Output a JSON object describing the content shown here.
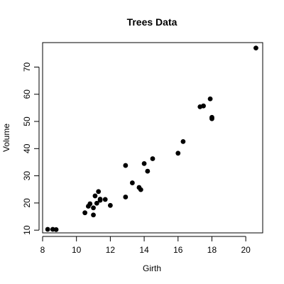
{
  "chart_data": {
    "type": "scatter",
    "title": "Trees Data",
    "xlabel": "Girth",
    "ylabel": "Volume",
    "xlim": [
      8,
      21
    ],
    "ylim": [
      9,
      79
    ],
    "x_ticks": [
      8,
      10,
      12,
      14,
      16,
      18,
      20
    ],
    "y_ticks": [
      10,
      20,
      30,
      40,
      50,
      60,
      70
    ],
    "grid": false,
    "legend": "none",
    "point_color": "#000000",
    "points": [
      {
        "x": 8.3,
        "y": 10.3
      },
      {
        "x": 8.6,
        "y": 10.3
      },
      {
        "x": 8.8,
        "y": 10.2
      },
      {
        "x": 10.5,
        "y": 16.4
      },
      {
        "x": 10.7,
        "y": 18.8
      },
      {
        "x": 10.8,
        "y": 19.7
      },
      {
        "x": 11.0,
        "y": 15.6
      },
      {
        "x": 11.0,
        "y": 18.2
      },
      {
        "x": 11.1,
        "y": 22.6
      },
      {
        "x": 11.2,
        "y": 19.9
      },
      {
        "x": 11.3,
        "y": 24.2
      },
      {
        "x": 11.4,
        "y": 21.0
      },
      {
        "x": 11.4,
        "y": 21.4
      },
      {
        "x": 11.7,
        "y": 21.3
      },
      {
        "x": 12.0,
        "y": 19.1
      },
      {
        "x": 12.9,
        "y": 22.2
      },
      {
        "x": 12.9,
        "y": 33.8
      },
      {
        "x": 13.3,
        "y": 27.4
      },
      {
        "x": 13.7,
        "y": 25.7
      },
      {
        "x": 13.8,
        "y": 24.9
      },
      {
        "x": 14.0,
        "y": 34.5
      },
      {
        "x": 14.2,
        "y": 31.7
      },
      {
        "x": 14.5,
        "y": 36.3
      },
      {
        "x": 16.0,
        "y": 38.3
      },
      {
        "x": 16.3,
        "y": 42.6
      },
      {
        "x": 17.3,
        "y": 55.4
      },
      {
        "x": 17.5,
        "y": 55.7
      },
      {
        "x": 17.9,
        "y": 58.3
      },
      {
        "x": 18.0,
        "y": 51.5
      },
      {
        "x": 18.0,
        "y": 51.0
      },
      {
        "x": 20.6,
        "y": 77.0
      }
    ]
  }
}
